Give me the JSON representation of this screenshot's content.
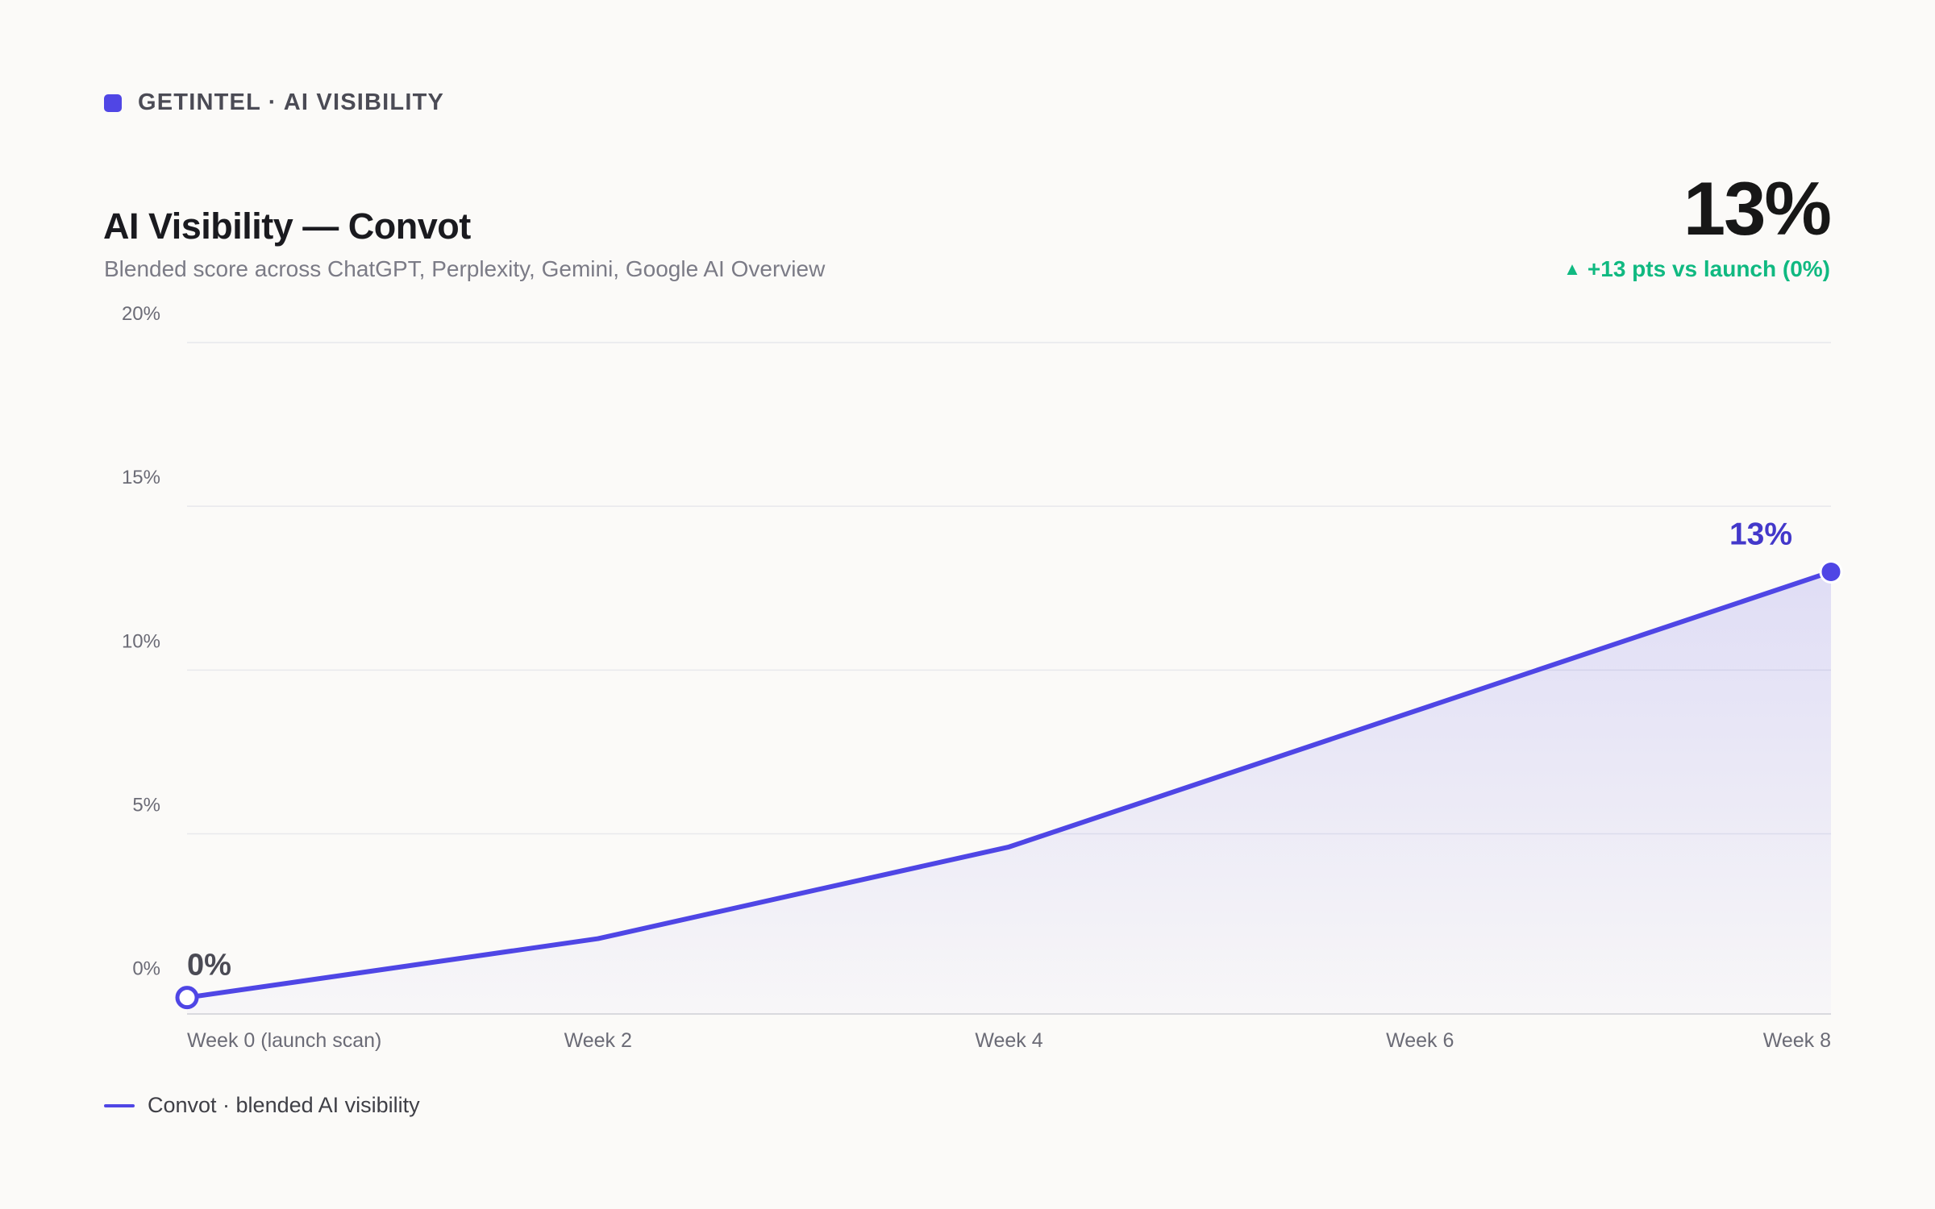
{
  "header": {
    "brand": "GETINTEL · AI VISIBILITY",
    "title": "AI Visibility — Convot",
    "subtitle": "Blended score across ChatGPT, Perplexity, Gemini, Google AI Overview",
    "headline_value": "13%",
    "delta_arrow": "▲",
    "delta_text": "+13 pts vs launch (0%)"
  },
  "colors": {
    "accent": "#4f46e5",
    "positive": "#10b981",
    "background": "#fbfaf8"
  },
  "chart_data": {
    "type": "area",
    "title": "AI Visibility — Convot",
    "subtitle": "Blended score across ChatGPT, Perplexity, Gemini, Google AI Overview",
    "xlabel": "",
    "ylabel": "",
    "x_ticks": [
      {
        "value": 0,
        "label": "Week 0 (launch scan)"
      },
      {
        "value": 2,
        "label": "Week 2"
      },
      {
        "value": 4,
        "label": "Week 4"
      },
      {
        "value": 6,
        "label": "Week 6"
      },
      {
        "value": 8,
        "label": "Week 8"
      }
    ],
    "y_ticks": [
      0,
      5,
      10,
      15,
      20
    ],
    "y_tick_labels": [
      "0%",
      "5%",
      "10%",
      "15%",
      "20%"
    ],
    "xlim": [
      0,
      8
    ],
    "ylim": [
      -0.5,
      20
    ],
    "grid": true,
    "legend_position": "bottom-left",
    "series": [
      {
        "name": "Convot · blended AI visibility",
        "x": [
          0,
          2,
          4,
          6,
          8
        ],
        "values": [
          0,
          1.8,
          4.6,
          8.8,
          13
        ]
      }
    ],
    "annotations": [
      {
        "x": 0,
        "y": 0,
        "label": "0%"
      },
      {
        "x": 8,
        "y": 13,
        "label": "13%"
      }
    ]
  },
  "legend": {
    "label": "Convot · blended AI visibility"
  }
}
